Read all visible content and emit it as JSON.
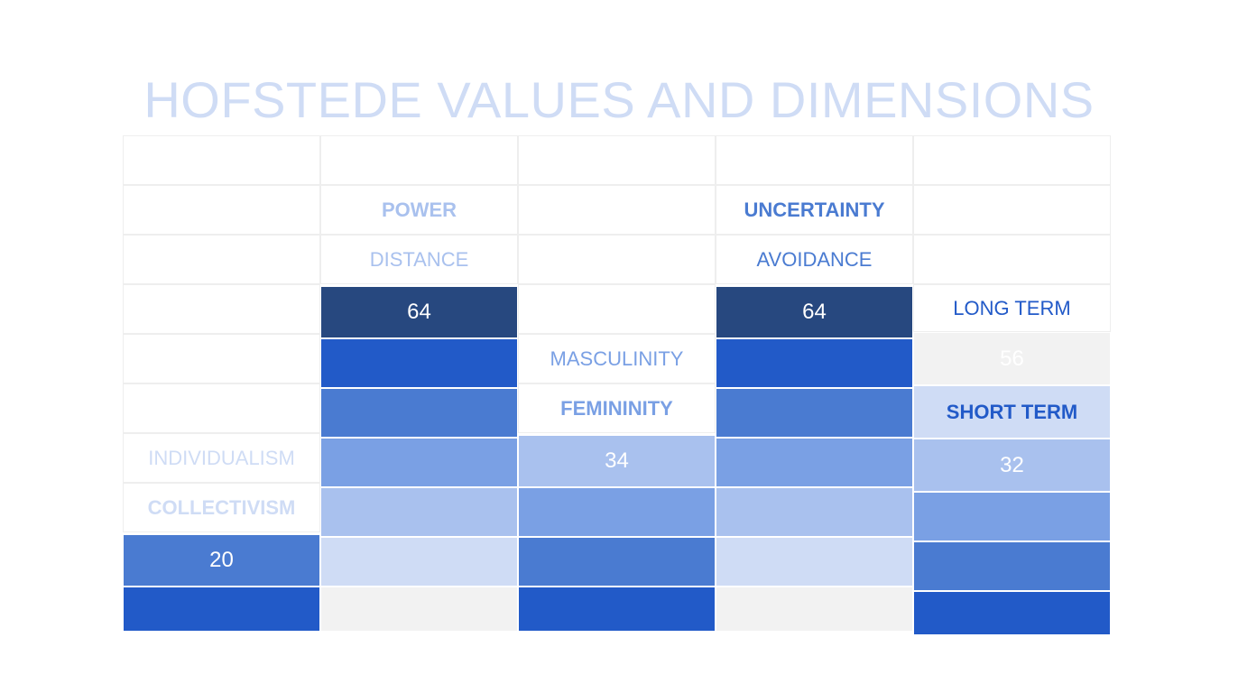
{
  "title": "HOFSTEDE VALUES AND DIMENSIONS",
  "colors": {
    "navy": "#27487f",
    "blue": "#225ac8",
    "mid": "#4a7bd1",
    "light": "#7aa0e4",
    "pale": "#a9c1ee",
    "palest": "#cfdcf5",
    "grey": "#f2f2f2"
  },
  "columns": [
    {
      "labels": [
        {
          "text": "INDIVIDUALISM",
          "color": "#cfdcf5",
          "bold": false
        },
        {
          "text": "COLLECTIVISM",
          "color": "#cfdcf5",
          "bold": true
        }
      ],
      "score": "20",
      "fills": [
        "#4a7bd1",
        "#225ac8"
      ]
    },
    {
      "labels": [
        {
          "text": "POWER",
          "color": "#a9c1ee",
          "bold": true
        },
        {
          "text": "DISTANCE",
          "color": "#a9c1ee",
          "bold": false
        }
      ],
      "score": "64",
      "fills": [
        "#27487f",
        "#225ac8",
        "#4a7bd1",
        "#7aa0e4",
        "#a9c1ee",
        "#cfdcf5",
        "#f2f2f2"
      ]
    },
    {
      "labels": [
        {
          "text": "MASCULINITY",
          "color": "#7aa0e4",
          "bold": false
        },
        {
          "text": "FEMININITY",
          "color": "#7aa0e4",
          "bold": true
        }
      ],
      "score": "34",
      "fills": [
        "#a9c1ee",
        "#7aa0e4",
        "#4a7bd1",
        "#225ac8"
      ]
    },
    {
      "labels": [
        {
          "text": "UNCERTAINTY",
          "color": "#4a7bd1",
          "bold": true
        },
        {
          "text": "AVOIDANCE",
          "color": "#4a7bd1",
          "bold": false
        }
      ],
      "score": "64",
      "fills": [
        "#27487f",
        "#225ac8",
        "#4a7bd1",
        "#7aa0e4",
        "#a9c1ee",
        "#cfdcf5",
        "#f2f2f2"
      ]
    },
    {
      "top_label": {
        "text": "LONG TERM",
        "color": "#225ac8",
        "bold": false
      },
      "top_score": "56",
      "top_fill": "#f2f2f2",
      "bottom_label": {
        "text": "SHORT TERM",
        "color": "#225ac8",
        "bold": true,
        "fill": "#cfdcf5"
      },
      "score": "32",
      "fills": [
        "#a9c1ee",
        "#7aa0e4",
        "#4a7bd1",
        "#225ac8"
      ]
    }
  ]
}
